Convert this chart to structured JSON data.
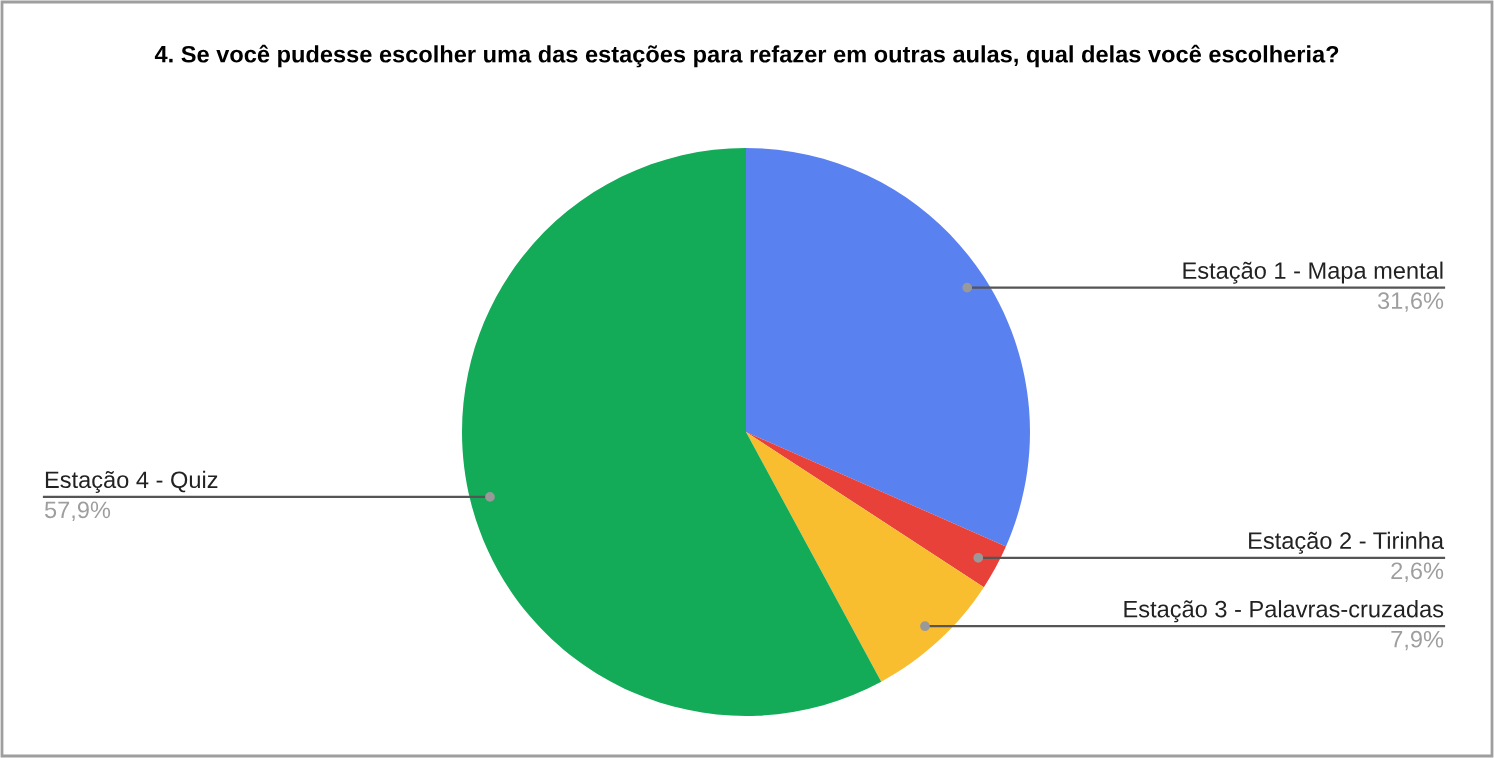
{
  "chart_data": {
    "type": "pie",
    "title": "4. Se você pudesse escolher uma das estações para refazer em outras aulas, qual delas você escolheria?",
    "categories": [
      "Estação 1 - Mapa mental",
      "Estação 2 - Tirinha",
      "Estação 3 - Palavras-cruzadas",
      "Estação 4 - Quiz"
    ],
    "values": [
      31.6,
      2.6,
      7.9,
      57.9
    ],
    "colors": [
      "#5a81f0",
      "#e8413a",
      "#f9be2f",
      "#13ab58"
    ],
    "value_labels": [
      "31,6%",
      "2,6%",
      "7,9%",
      "57,9%"
    ]
  }
}
